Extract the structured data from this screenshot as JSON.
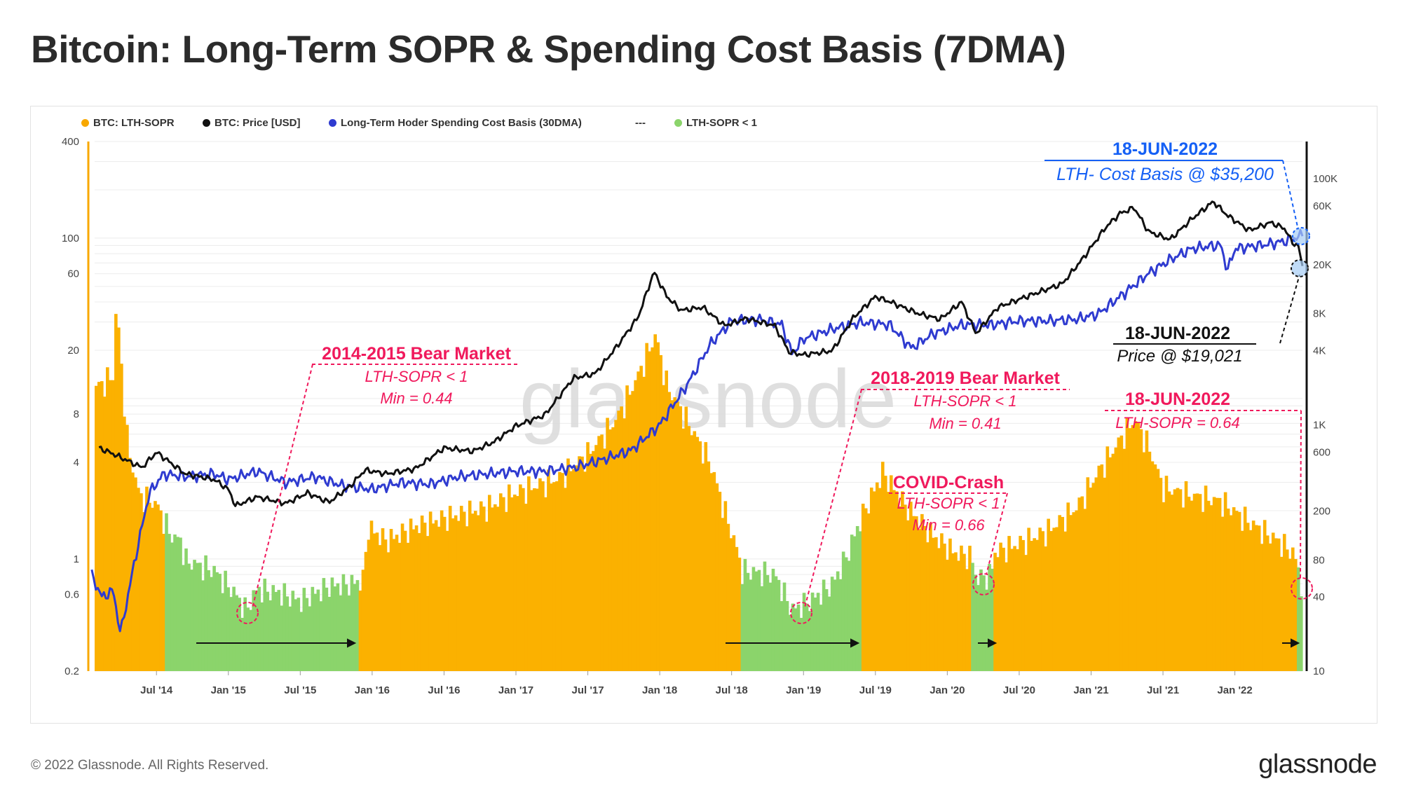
{
  "title": "Bitcoin: Long-Term SOPR & Spending Cost Basis (7DMA)",
  "footer": {
    "copyright": "© 2022 Glassnode. All Rights Reserved.",
    "logo": "glassnode"
  },
  "watermark": "glassnode",
  "colors": {
    "sopr": "#fbb100",
    "sopr_low": "#8bd46b",
    "price": "#111111",
    "cost_basis": "#2f3bd0",
    "annotation_red": "#f0195c",
    "annotation_blue": "#1560f5"
  },
  "legend": [
    {
      "label": "BTC: LTH-SOPR",
      "color": "#f8a800"
    },
    {
      "label": "BTC: Price [USD]",
      "color": "#111111"
    },
    {
      "label": "Long-Term Hoder Spending Cost Basis (30DMA)",
      "color": "#2f3bd0"
    },
    {
      "label": "---",
      "color": ""
    },
    {
      "label": "LTH-SOPR < 1",
      "color": "#8bd46b"
    }
  ],
  "chart_data": {
    "type": "area",
    "left_axis": {
      "scale": "log",
      "range": [
        0.2,
        400
      ],
      "ticks": [
        0.2,
        0.6,
        1,
        4,
        8,
        20,
        60,
        100,
        400
      ]
    },
    "right_axis": {
      "scale": "log",
      "range": [
        10,
        200000
      ],
      "ticks": [
        10,
        40,
        80,
        200,
        600,
        1000,
        4000,
        8000,
        20000,
        60000,
        100000
      ],
      "tick_labels": [
        "10",
        "40",
        "80",
        "200",
        "600",
        "1K",
        "4K",
        "8K",
        "20K",
        "60K",
        "100K"
      ]
    },
    "x_axis": {
      "range": [
        "2014-02",
        "2022-06-20"
      ],
      "tick_labels": [
        "Jul '14",
        "Jan '15",
        "Jul '15",
        "Jan '16",
        "Jul '16",
        "Jan '17",
        "Jul '17",
        "Jan '18",
        "Jul '18",
        "Jan '19",
        "Jul '19",
        "Jan '20",
        "Jul '20",
        "Jan '21",
        "Jul '21",
        "Jan '22"
      ],
      "tick_positions_years": [
        2014.5,
        2015.0,
        2015.5,
        2016.0,
        2016.5,
        2017.0,
        2017.5,
        2018.0,
        2018.5,
        2019.0,
        2019.5,
        2020.0,
        2020.5,
        2021.0,
        2021.5,
        2022.0
      ]
    },
    "series": [
      {
        "name": "BTC: LTH-SOPR",
        "axis": "left",
        "points": [
          [
            2014.1,
            12
          ],
          [
            2014.2,
            14
          ],
          [
            2014.22,
            40
          ],
          [
            2014.3,
            5
          ],
          [
            2014.38,
            2.5
          ],
          [
            2014.5,
            2.2
          ],
          [
            2014.6,
            1.4
          ],
          [
            2014.67,
            1.3
          ],
          [
            2014.7,
            0.98
          ],
          [
            2014.9,
            0.85
          ],
          [
            2015.04,
            0.62
          ],
          [
            2015.12,
            0.48
          ],
          [
            2015.2,
            0.65
          ],
          [
            2015.35,
            0.62
          ],
          [
            2015.5,
            0.55
          ],
          [
            2015.7,
            0.68
          ],
          [
            2015.85,
            0.7
          ],
          [
            2015.95,
            0.75
          ],
          [
            2015.96,
            1.6
          ],
          [
            2016.1,
            1.3
          ],
          [
            2016.3,
            1.6
          ],
          [
            2016.5,
            1.8
          ],
          [
            2016.8,
            2.1
          ],
          [
            2017.0,
            2.6
          ],
          [
            2017.3,
            3.2
          ],
          [
            2017.5,
            4.5
          ],
          [
            2017.7,
            7.5
          ],
          [
            2017.85,
            14
          ],
          [
            2017.97,
            25
          ],
          [
            2018.05,
            12
          ],
          [
            2018.2,
            7
          ],
          [
            2018.35,
            4
          ],
          [
            2018.45,
            2
          ],
          [
            2018.55,
            1.05
          ],
          [
            2018.56,
            0.85
          ],
          [
            2018.8,
            0.8
          ],
          [
            2018.92,
            0.48
          ],
          [
            2019.05,
            0.55
          ],
          [
            2019.2,
            0.7
          ],
          [
            2019.3,
            1.05
          ],
          [
            2019.4,
            1.8
          ],
          [
            2019.5,
            2.8
          ],
          [
            2019.55,
            3.5
          ],
          [
            2019.7,
            2.2
          ],
          [
            2019.9,
            1.4
          ],
          [
            2020.05,
            1.1
          ],
          [
            2020.17,
            1.03
          ],
          [
            2020.2,
            0.75
          ],
          [
            2020.3,
            0.8
          ],
          [
            2020.33,
            1.1
          ],
          [
            2020.5,
            1.25
          ],
          [
            2020.7,
            1.5
          ],
          [
            2020.9,
            2.1
          ],
          [
            2021.05,
            3.5
          ],
          [
            2021.2,
            5.5
          ],
          [
            2021.3,
            7.5
          ],
          [
            2021.4,
            5
          ],
          [
            2021.5,
            2.8
          ],
          [
            2021.7,
            2.5
          ],
          [
            2021.9,
            2.3
          ],
          [
            2022.1,
            1.7
          ],
          [
            2022.3,
            1.3
          ],
          [
            2022.4,
            1.1
          ],
          [
            2022.43,
            0.95
          ],
          [
            2022.47,
            0.64
          ]
        ]
      },
      {
        "name": "BTC: Price [USD]",
        "axis": "right",
        "points": [
          [
            2014.1,
            650
          ],
          [
            2014.2,
            580
          ],
          [
            2014.4,
            450
          ],
          [
            2014.5,
            600
          ],
          [
            2014.7,
            400
          ],
          [
            2014.9,
            360
          ],
          [
            2015.0,
            300
          ],
          [
            2015.05,
            220
          ],
          [
            2015.2,
            260
          ],
          [
            2015.4,
            230
          ],
          [
            2015.55,
            280
          ],
          [
            2015.7,
            235
          ],
          [
            2015.85,
            320
          ],
          [
            2015.95,
            430
          ],
          [
            2016.1,
            400
          ],
          [
            2016.3,
            440
          ],
          [
            2016.5,
            650
          ],
          [
            2016.7,
            610
          ],
          [
            2016.85,
            730
          ],
          [
            2017.0,
            980
          ],
          [
            2017.2,
            1200
          ],
          [
            2017.4,
            2400
          ],
          [
            2017.55,
            2600
          ],
          [
            2017.7,
            4300
          ],
          [
            2017.85,
            7500
          ],
          [
            2017.96,
            17500
          ],
          [
            2018.05,
            11000
          ],
          [
            2018.15,
            8500
          ],
          [
            2018.3,
            9000
          ],
          [
            2018.45,
            6400
          ],
          [
            2018.6,
            7300
          ],
          [
            2018.8,
            6400
          ],
          [
            2018.9,
            3900
          ],
          [
            2019.0,
            3700
          ],
          [
            2019.2,
            4000
          ],
          [
            2019.35,
            7500
          ],
          [
            2019.5,
            11000
          ],
          [
            2019.6,
            10000
          ],
          [
            2019.8,
            8000
          ],
          [
            2019.95,
            7200
          ],
          [
            2020.1,
            10000
          ],
          [
            2020.2,
            5500
          ],
          [
            2020.35,
            9000
          ],
          [
            2020.55,
            11000
          ],
          [
            2020.8,
            14000
          ],
          [
            2020.95,
            23000
          ],
          [
            2021.1,
            40000
          ],
          [
            2021.2,
            52000
          ],
          [
            2021.3,
            58000
          ],
          [
            2021.4,
            37000
          ],
          [
            2021.55,
            32000
          ],
          [
            2021.7,
            47000
          ],
          [
            2021.85,
            65000
          ],
          [
            2021.95,
            50000
          ],
          [
            2022.1,
            38000
          ],
          [
            2022.25,
            44000
          ],
          [
            2022.35,
            39000
          ],
          [
            2022.4,
            30000
          ],
          [
            2022.44,
            29000
          ],
          [
            2022.47,
            19021
          ]
        ]
      },
      {
        "name": "Long-Term Hoder Spending Cost Basis (30DMA)",
        "axis": "right",
        "points": [
          [
            2014.05,
            60
          ],
          [
            2014.12,
            40
          ],
          [
            2014.2,
            45
          ],
          [
            2014.25,
            20
          ],
          [
            2014.35,
            80
          ],
          [
            2014.45,
            280
          ],
          [
            2014.55,
            400
          ],
          [
            2014.7,
            380
          ],
          [
            2014.9,
            400
          ],
          [
            2015.0,
            360
          ],
          [
            2015.2,
            420
          ],
          [
            2015.4,
            340
          ],
          [
            2015.6,
            380
          ],
          [
            2015.8,
            320
          ],
          [
            2016.0,
            300
          ],
          [
            2016.2,
            340
          ],
          [
            2016.4,
            330
          ],
          [
            2016.6,
            380
          ],
          [
            2016.8,
            400
          ],
          [
            2017.0,
            420
          ],
          [
            2017.2,
            420
          ],
          [
            2017.4,
            450
          ],
          [
            2017.6,
            520
          ],
          [
            2017.8,
            620
          ],
          [
            2018.0,
            1000
          ],
          [
            2018.2,
            2200
          ],
          [
            2018.35,
            4500
          ],
          [
            2018.5,
            7000
          ],
          [
            2018.7,
            7200
          ],
          [
            2018.85,
            6500
          ],
          [
            2018.92,
            3800
          ],
          [
            2019.0,
            5000
          ],
          [
            2019.2,
            6000
          ],
          [
            2019.4,
            6800
          ],
          [
            2019.6,
            6500
          ],
          [
            2019.75,
            4200
          ],
          [
            2019.9,
            5500
          ],
          [
            2020.1,
            6500
          ],
          [
            2020.3,
            6500
          ],
          [
            2020.5,
            7000
          ],
          [
            2020.7,
            7000
          ],
          [
            2020.9,
            7200
          ],
          [
            2021.05,
            8000
          ],
          [
            2021.2,
            11000
          ],
          [
            2021.4,
            17000
          ],
          [
            2021.55,
            22000
          ],
          [
            2021.7,
            27000
          ],
          [
            2021.9,
            29000
          ],
          [
            2021.95,
            18000
          ],
          [
            2022.0,
            27000
          ],
          [
            2022.2,
            29000
          ],
          [
            2022.35,
            31000
          ],
          [
            2022.45,
            34000
          ],
          [
            2022.47,
            35200
          ]
        ]
      }
    ],
    "low_sopr_periods": [
      [
        2014.55,
        2015.9
      ],
      [
        2018.56,
        2019.4
      ],
      [
        2020.17,
        2020.32
      ],
      [
        2022.43,
        2022.47
      ]
    ],
    "annotations": [
      {
        "title": "2014-2015 Bear Market",
        "lines": [
          "LTH-SOPR < 1",
          "Min = 0.44"
        ],
        "color": "#f0195c"
      },
      {
        "title": "2018-2019 Bear Market",
        "lines": [
          "LTH-SOPR < 1",
          "Min = 0.41"
        ],
        "color": "#f0195c"
      },
      {
        "title": "COVID-Crash",
        "lines": [
          "LTH-SOPR < 1",
          "Min = 0.66"
        ],
        "color": "#f0195c"
      },
      {
        "title": "18-JUN-2022",
        "lines": [
          "LTH-SOPR = 0.64"
        ],
        "color": "#f0195c"
      },
      {
        "title": "18-JUN-2022",
        "lines": [
          "LTH- Cost Basis @ $35,200"
        ],
        "color": "#1560f5"
      },
      {
        "title": "18-JUN-2022",
        "lines": [
          "Price @ $19,021"
        ],
        "color": "#111111"
      }
    ]
  }
}
